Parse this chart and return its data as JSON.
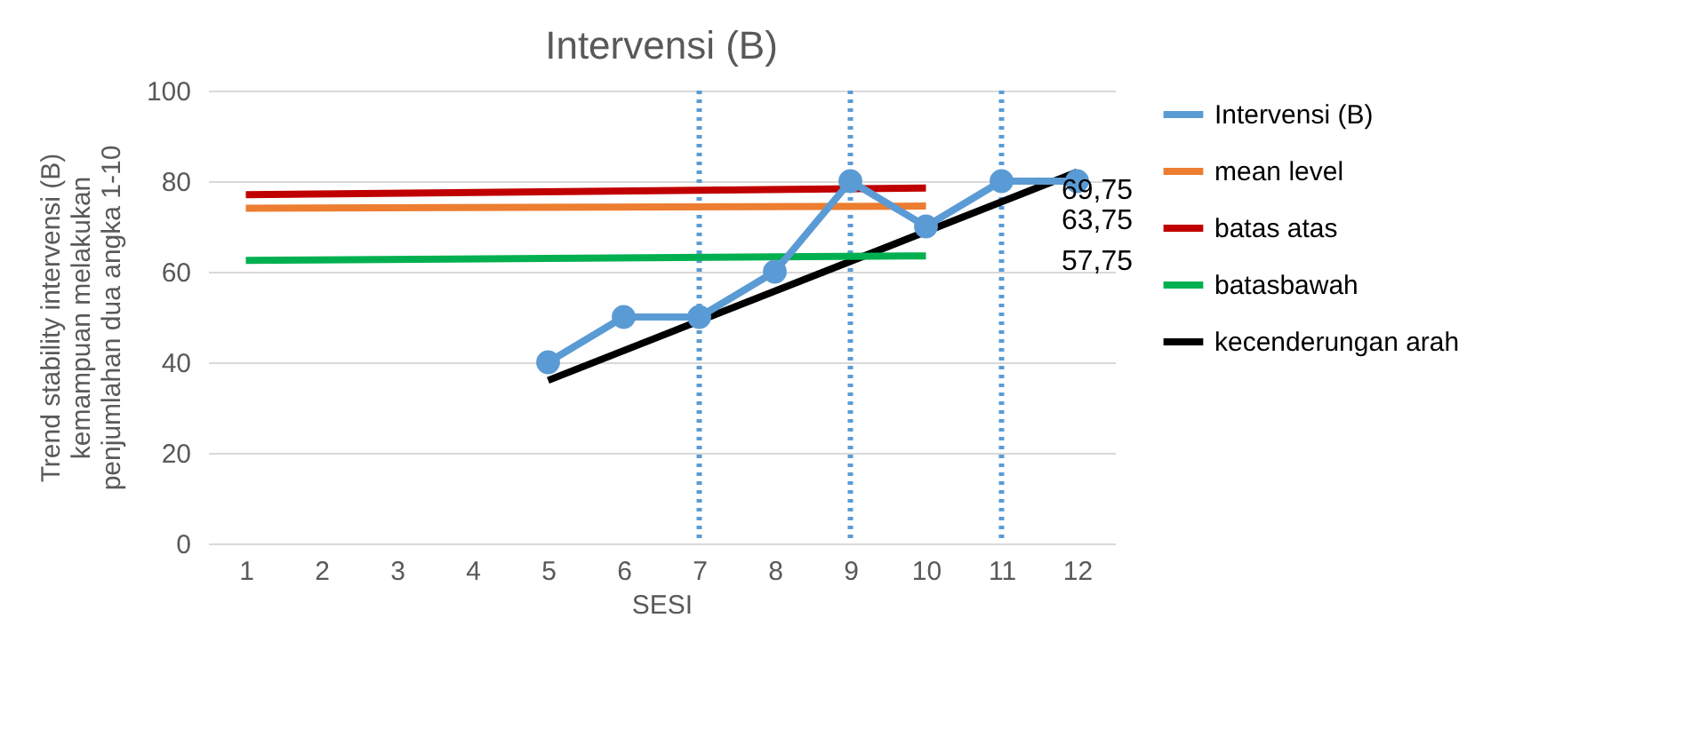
{
  "chart_data": {
    "type": "line",
    "title": "Intervensi (B)",
    "xlabel": "SESI",
    "ylabel": "Trend stability intervensi (B) kemampuan melakukan penjumlahan dua angka 1-10",
    "xlim": [
      0.5,
      12.5
    ],
    "xticks": [
      1,
      2,
      3,
      4,
      5,
      6,
      7,
      8,
      9,
      10,
      11,
      12
    ],
    "series": [
      {
        "name": "Intervensi (B)",
        "color": "#5b9bd5",
        "marker": "circle",
        "x": [
          5,
          6,
          7,
          8,
          9,
          10,
          11,
          12
        ],
        "values": [
          40,
          50,
          50,
          60,
          80,
          70,
          80,
          80
        ]
      },
      {
        "name": "mean level",
        "color": "#ed7d31",
        "x": [
          1,
          10
        ],
        "values": [
          74,
          74.5
        ]
      },
      {
        "name": "batas atas",
        "color": "#c00000",
        "x": [
          1,
          10
        ],
        "values": [
          77,
          78.5
        ]
      },
      {
        "name": "batasbawah",
        "color": "#00b050",
        "x": [
          1,
          10
        ],
        "values": [
          62.5,
          63.5
        ]
      },
      {
        "name": "kecenderungan arah",
        "color": "#000000",
        "x": [
          5,
          12
        ],
        "values": [
          36,
          82
        ]
      }
    ],
    "ylim": [
      0,
      100
    ],
    "yticks": [
      0,
      20,
      40,
      60,
      80,
      100
    ],
    "grid": "y",
    "legend": "right",
    "ref_lines": [
      {
        "axis": "x",
        "value": 7,
        "color": "#5b9bd5",
        "line_style": "dotted"
      },
      {
        "axis": "x",
        "value": 9,
        "color": "#5b9bd5",
        "line_style": "dotted"
      },
      {
        "axis": "x",
        "value": 11,
        "color": "#5b9bd5",
        "line_style": "dotted"
      }
    ],
    "annotations": [
      "69,75",
      "63,75",
      "57,75"
    ]
  }
}
